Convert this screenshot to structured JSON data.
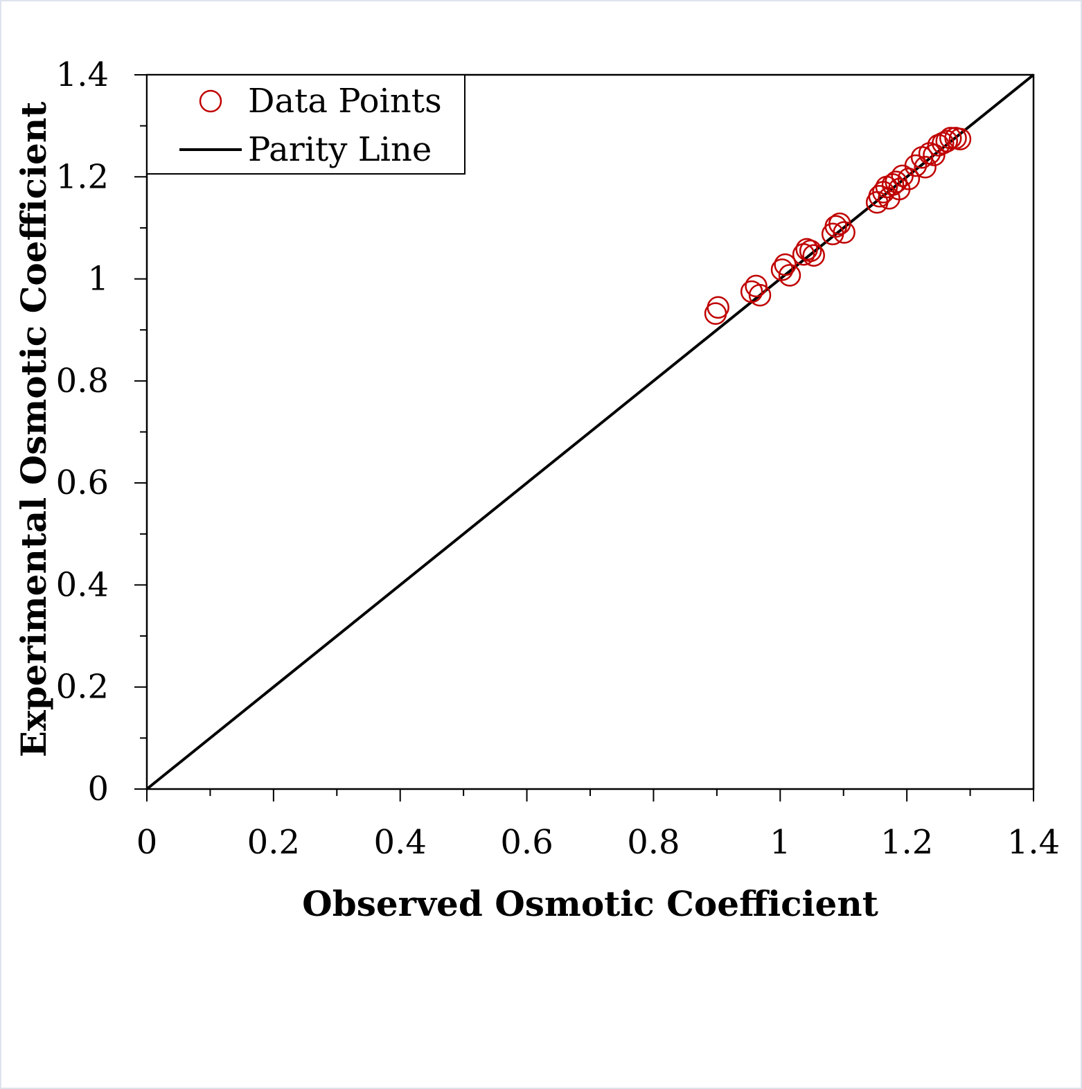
{
  "chart_data": {
    "type": "scatter",
    "xlabel": "Observed Osmotic Coefficient",
    "ylabel": "Experimental Osmotic Coefficient",
    "xlim": [
      0,
      1.4
    ],
    "ylim": [
      0,
      1.4
    ],
    "x_ticks": [
      "0",
      "0.2",
      "0.4",
      "0.6",
      "0.8",
      "1",
      "1.2",
      "1.4"
    ],
    "y_ticks": [
      "0",
      "0.2",
      "0.4",
      "0.6",
      "0.8",
      "1",
      "1.2",
      "1.4"
    ],
    "legend": {
      "placement": "top-left",
      "entries": [
        "Data Points",
        "Parity Line"
      ]
    },
    "colors": {
      "points": "#c00000",
      "line": "#000000"
    },
    "series": [
      {
        "name": "Data Points",
        "kind": "scatter",
        "points": [
          [
            0.898,
            0.932
          ],
          [
            0.902,
            0.944
          ],
          [
            0.955,
            0.975
          ],
          [
            0.962,
            0.986
          ],
          [
            0.968,
            0.968
          ],
          [
            1.003,
            1.018
          ],
          [
            1.008,
            1.028
          ],
          [
            1.015,
            1.007
          ],
          [
            1.037,
            1.048
          ],
          [
            1.042,
            1.058
          ],
          [
            1.048,
            1.055
          ],
          [
            1.053,
            1.046
          ],
          [
            1.083,
            1.088
          ],
          [
            1.088,
            1.103
          ],
          [
            1.094,
            1.108
          ],
          [
            1.101,
            1.091
          ],
          [
            1.153,
            1.15
          ],
          [
            1.157,
            1.162
          ],
          [
            1.163,
            1.17
          ],
          [
            1.168,
            1.18
          ],
          [
            1.172,
            1.158
          ],
          [
            1.178,
            1.185
          ],
          [
            1.183,
            1.19
          ],
          [
            1.188,
            1.176
          ],
          [
            1.193,
            1.202
          ],
          [
            1.203,
            1.196
          ],
          [
            1.214,
            1.222
          ],
          [
            1.224,
            1.238
          ],
          [
            1.229,
            1.219
          ],
          [
            1.236,
            1.246
          ],
          [
            1.243,
            1.243
          ],
          [
            1.25,
            1.262
          ],
          [
            1.257,
            1.266
          ],
          [
            1.263,
            1.27
          ],
          [
            1.269,
            1.276
          ],
          [
            1.277,
            1.276
          ],
          [
            1.284,
            1.274
          ]
        ]
      },
      {
        "name": "Parity Line",
        "kind": "line",
        "points": [
          [
            0,
            0
          ],
          [
            1.4,
            1.4
          ]
        ]
      }
    ]
  }
}
